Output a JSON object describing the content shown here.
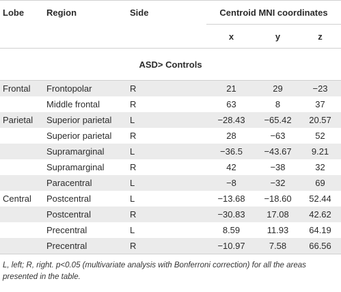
{
  "table": {
    "headers": {
      "lobe": "Lobe",
      "region": "Region",
      "side": "Side",
      "centroid": "Centroid MNI coordinates",
      "x": "x",
      "y": "y",
      "z": "z"
    },
    "group_label": "ASD> Controls",
    "rows": [
      {
        "lobe": "Frontal",
        "region": "Frontopolar",
        "side": "R",
        "x": "21",
        "y": "29",
        "z": "−23"
      },
      {
        "lobe": "",
        "region": "Middle frontal",
        "side": "R",
        "x": "63",
        "y": "8",
        "z": "37"
      },
      {
        "lobe": "Parietal",
        "region": "Superior parietal",
        "side": "L",
        "x": "−28.43",
        "y": "−65.42",
        "z": "20.57"
      },
      {
        "lobe": "",
        "region": "Superior parietal",
        "side": "R",
        "x": "28",
        "y": "−63",
        "z": "52"
      },
      {
        "lobe": "",
        "region": "Supramarginal",
        "side": "L",
        "x": "−36.5",
        "y": "−43.67",
        "z": "9.21"
      },
      {
        "lobe": "",
        "region": "Supramarginal",
        "side": "R",
        "x": "42",
        "y": "−38",
        "z": "32"
      },
      {
        "lobe": "",
        "region": "Paracentral",
        "side": "L",
        "x": "−8",
        "y": "−32",
        "z": "69"
      },
      {
        "lobe": "Central",
        "region": "Postcentral",
        "side": "L",
        "x": "−13.68",
        "y": "−18.60",
        "z": "52.44"
      },
      {
        "lobe": "",
        "region": "Postcentral",
        "side": "R",
        "x": "−30.83",
        "y": "17.08",
        "z": "42.62"
      },
      {
        "lobe": "",
        "region": "Precentral",
        "side": "L",
        "x": "8.59",
        "y": "11.93",
        "z": "64.19"
      },
      {
        "lobe": "",
        "region": "Precentral",
        "side": "R",
        "x": "−10.97",
        "y": "7.58",
        "z": "66.56"
      }
    ]
  },
  "footnote": "L, left; R, right. p<0.05 (multivariate analysis with Bonferroni correction) for all the areas presented in the table."
}
